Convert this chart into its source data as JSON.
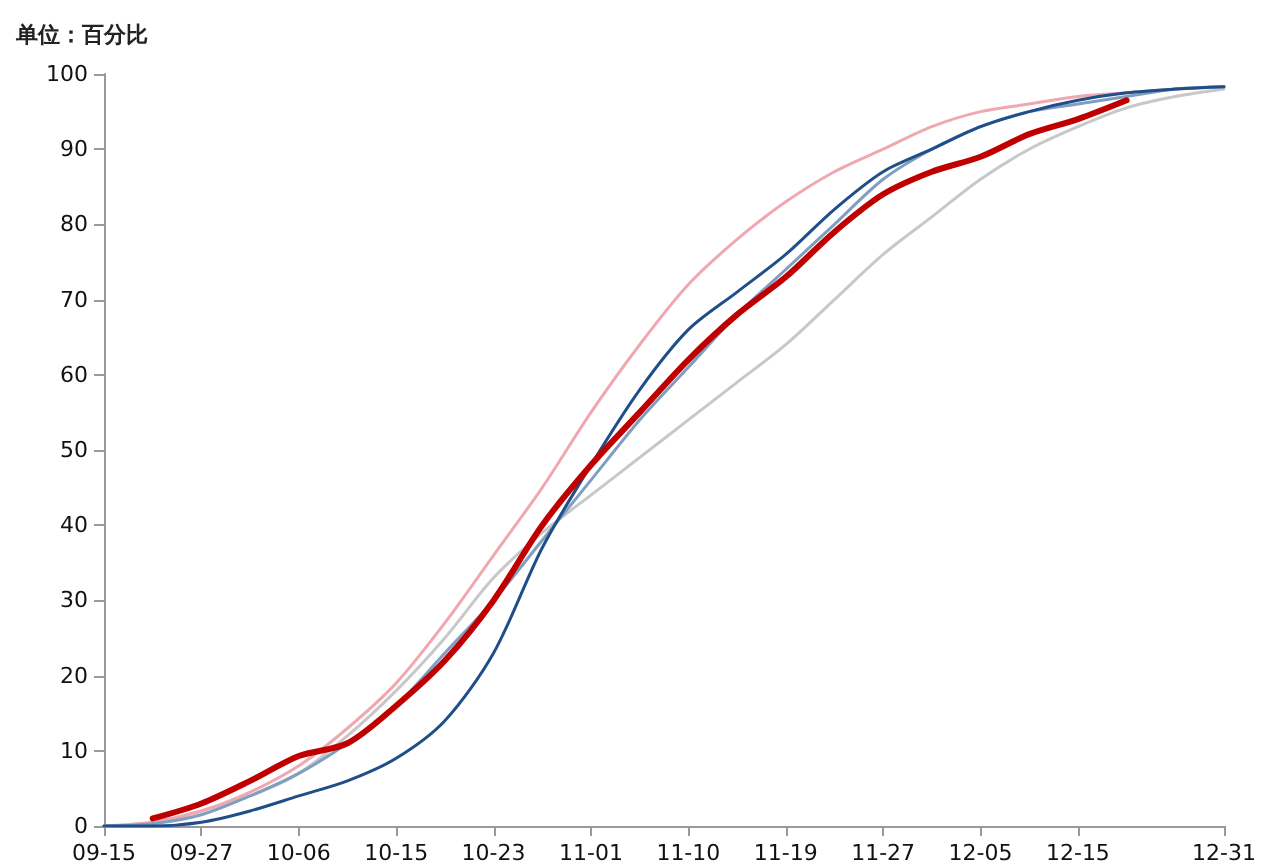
{
  "chart_data": {
    "type": "line",
    "ylabel": "单位：百分比",
    "categories": [
      "09-15",
      null,
      "09-27",
      null,
      "10-06",
      null,
      "10-15",
      null,
      "10-23",
      null,
      "11-01",
      null,
      "11-10",
      null,
      "11-19",
      null,
      "11-27",
      null,
      "12-05",
      null,
      "12-15",
      null,
      null,
      "12-31"
    ],
    "ylim": [
      0,
      100
    ],
    "yticks": [
      0,
      10,
      20,
      30,
      40,
      50,
      60,
      70,
      80,
      90,
      100
    ],
    "grid": false,
    "marker": "none",
    "line_style": "solid",
    "series": [
      {
        "color": "#c8c8c8",
        "values": [
          0,
          0.5,
          2,
          4,
          7,
          12,
          18,
          25,
          33,
          39,
          44,
          49,
          54,
          59,
          64,
          70,
          76,
          81,
          86,
          90,
          93,
          95.5,
          97,
          98
        ]
      },
      {
        "color": "#f0a8b0",
        "values": [
          0,
          0.5,
          2,
          4.5,
          8,
          13,
          19,
          27,
          36,
          45,
          55,
          64,
          72,
          78,
          83,
          87,
          90,
          93,
          95,
          96,
          97,
          97.5,
          98,
          98.3
        ]
      },
      {
        "color": "#7f9fc0",
        "values": [
          0,
          0.3,
          1.5,
          4,
          7,
          11,
          16,
          23,
          30,
          38,
          46,
          54,
          61,
          68,
          74,
          80,
          86,
          90,
          93,
          95,
          96,
          97,
          98,
          98.3
        ]
      },
      {
        "color": "#1f4e89",
        "values": [
          0,
          0,
          0.5,
          2,
          4,
          6,
          9,
          14,
          23,
          37,
          48,
          58,
          66,
          71,
          76,
          82,
          87,
          90,
          93,
          95,
          96.5,
          97.5,
          98,
          98.3
        ]
      },
      {
        "color": "#c00000",
        "values": [
          null,
          1,
          3,
          6,
          9.3,
          11,
          16,
          22,
          30,
          40,
          48,
          55,
          62,
          68,
          73,
          79,
          84,
          87,
          89,
          92,
          94,
          96.5,
          null,
          null
        ]
      }
    ]
  }
}
